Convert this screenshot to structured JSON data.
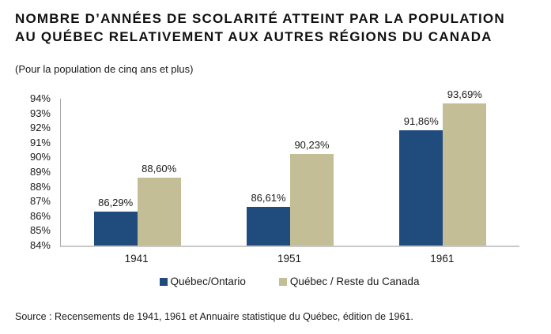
{
  "page": {
    "title_line1": "NOMBRE D’ANNÉES DE SCOLARITÉ ATTEINT PAR LA POPULATION",
    "title_line2": "AU QUÉBEC RELATIVEMENT AUX AUTRES RÉGIONS DU CANADA",
    "subtitle": "(Pour la population de cinq ans et plus)",
    "source": "Source : Recensements de 1941, 1961 et Annuaire statistique du Québec, édition de 1961."
  },
  "colors": {
    "series_blue": "#1F4B7D",
    "series_tan": "#C4BE96",
    "axis_line": "#A6A6A6",
    "baseline": "#C9C9C9"
  },
  "chart_data": {
    "type": "bar",
    "title": "Nombre d’années de scolarité atteint par la population au Québec relativement aux autres régions du Canada",
    "subtitle": "(Pour la population de cinq ans et plus)",
    "categories": [
      "1941",
      "1951",
      "1961"
    ],
    "series": [
      {
        "name": "Québec/Ontario",
        "color": "#1F4B7D",
        "values": [
          86.29,
          86.61,
          91.86
        ],
        "labels": [
          "86,29%",
          "86,61%",
          "91,86%"
        ]
      },
      {
        "name": "Québec / Reste du Canada",
        "color": "#C4BE96",
        "values": [
          88.6,
          90.23,
          93.69
        ],
        "labels": [
          "88,60%",
          "90,23%",
          "93,69%"
        ]
      }
    ],
    "ylim": [
      84,
      94
    ],
    "ytick_step": 1,
    "ytick_suffix": "%",
    "xlabel": "",
    "ylabel": "",
    "grid": false,
    "legend_position": "bottom"
  }
}
